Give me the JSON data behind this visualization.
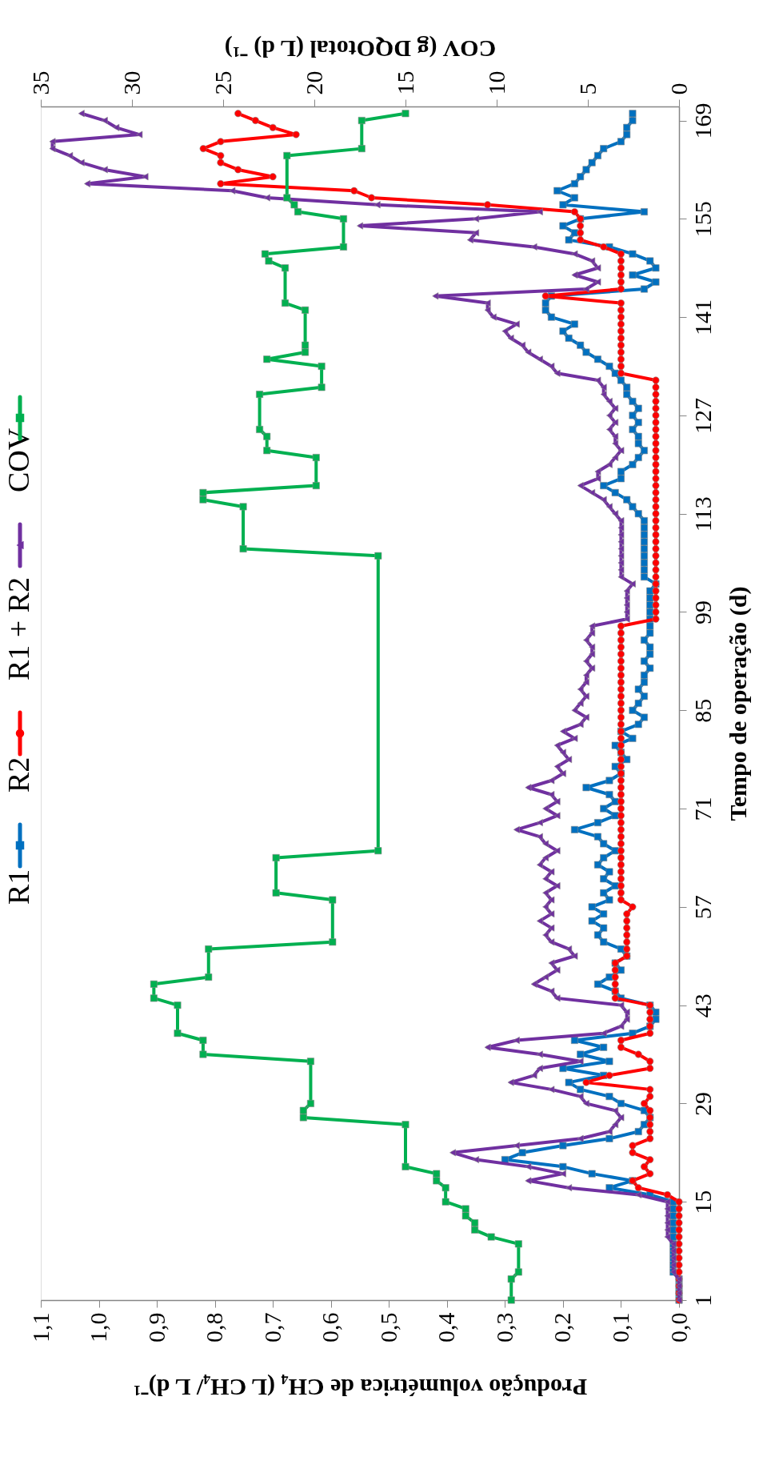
{
  "chart_data": {
    "type": "line",
    "ylabel": "Tempo de operação (d)",
    "xlabel": "Produção volumétrica de CH₄ (L CH₄/ L d)⁻¹",
    "x2label": "COV (g DQOtotal (L d) ⁻¹)",
    "ylim": [
      1,
      171
    ],
    "yticks": [
      1,
      15,
      29,
      43,
      57,
      71,
      85,
      99,
      113,
      127,
      141,
      155,
      169
    ],
    "xlim": [
      1.1,
      0
    ],
    "xticks": [
      {
        "value": 0,
        "label": "0,0"
      },
      {
        "value": 0.1,
        "label": "0,1"
      },
      {
        "value": 0.2,
        "label": "0,2"
      },
      {
        "value": 0.3,
        "label": "0,3"
      },
      {
        "value": 0.4,
        "label": "0,4"
      },
      {
        "value": 0.5,
        "label": "0,5"
      },
      {
        "value": 0.6,
        "label": "0,6"
      },
      {
        "value": 0.7,
        "label": "0,7"
      },
      {
        "value": 0.8,
        "label": "0,8"
      },
      {
        "value": 0.9,
        "label": "0,9"
      },
      {
        "value": 1.0,
        "label": "1,0"
      },
      {
        "value": 1.1,
        "label": "1,1"
      }
    ],
    "x2lim": [
      35,
      0
    ],
    "x2ticks": [
      0,
      5,
      10,
      15,
      20,
      25,
      30,
      35
    ],
    "legend": "left",
    "grid": false,
    "line_style": "solid",
    "series": [
      {
        "name": "R1",
        "color": "#0070c0",
        "marker": "square",
        "x": [
          0,
          0,
          0,
          0,
          0.01,
          0.01,
          0.01,
          0.01,
          0.01,
          0.01,
          0.01,
          0.01,
          0.01,
          0.01,
          0.01,
          0.05,
          0.12,
          0.08,
          0.15,
          0.2,
          0.3,
          0.27,
          0.2,
          0.12,
          0.07,
          0.06,
          0.05,
          0.06,
          0.1,
          0.12,
          0.17,
          0.19,
          0.13,
          0.2,
          0.12,
          0.17,
          0.13,
          0.18,
          0.08,
          0.05,
          0.04,
          0.04,
          0.05,
          0.1,
          0.11,
          0.14,
          0.12,
          0.1,
          0.11,
          0.09,
          0.1,
          0.13,
          0.14,
          0.13,
          0.15,
          0.13,
          0.15,
          0.12,
          0.13,
          0.11,
          0.13,
          0.12,
          0.14,
          0.13,
          0.11,
          0.13,
          0.14,
          0.18,
          0.14,
          0.11,
          0.13,
          0.11,
          0.12,
          0.16,
          0.12,
          0.1,
          0.11,
          0.09,
          0.1,
          0.11,
          0.08,
          0.1,
          0.07,
          0.06,
          0.08,
          0.07,
          0.06,
          0.07,
          0.06,
          0.06,
          0.05,
          0.06,
          0.05,
          0.05,
          0.06,
          0.05,
          0.05,
          0.05,
          0.05,
          0.05,
          0.05,
          0.05,
          0.04,
          0.06,
          0.06,
          0.06,
          0.06,
          0.06,
          0.06,
          0.06,
          0.06,
          0.06,
          0.07,
          0.08,
          0.09,
          0.11,
          0.13,
          0.1,
          0.1,
          0.08,
          0.07,
          0.06,
          0.07,
          0.07,
          0.08,
          0.07,
          0.08,
          0.07,
          0.08,
          0.09,
          0.09,
          0.1,
          0.11,
          0.12,
          0.14,
          0.16,
          0.17,
          0.19,
          0.2,
          0.18,
          0.22,
          0.23,
          0.23,
          0.22,
          0.06,
          0.04,
          0.08,
          0.04,
          0.05,
          0.08,
          0.12,
          0.19,
          0.18,
          0.2,
          0.17,
          0.06,
          0.2,
          0.18,
          0.21,
          0.18,
          0.17,
          0.16,
          0.15,
          0.14,
          0.13,
          0.1,
          0.09,
          0.09,
          0.08,
          0.08
        ],
        "values": [
          1,
          2,
          3,
          4,
          5,
          6,
          7,
          8,
          9,
          10,
          11,
          12,
          13,
          14,
          15,
          16,
          17,
          18,
          19,
          20,
          21,
          22,
          23,
          24,
          25,
          26,
          27,
          28,
          29,
          30,
          31,
          32,
          33,
          34,
          35,
          36,
          37,
          38,
          39,
          40,
          41,
          42,
          43,
          44,
          45,
          46,
          47,
          48,
          49,
          50,
          51,
          52,
          53,
          54,
          55,
          56,
          57,
          58,
          59,
          60,
          61,
          62,
          63,
          64,
          65,
          66,
          67,
          68,
          69,
          70,
          71,
          72,
          73,
          74,
          75,
          76,
          77,
          78,
          79,
          80,
          81,
          82,
          83,
          84,
          85,
          86,
          87,
          88,
          89,
          90,
          91,
          92,
          93,
          94,
          95,
          96,
          97,
          98,
          99,
          100,
          101,
          102,
          103,
          104,
          105,
          106,
          107,
          108,
          109,
          110,
          111,
          112,
          113,
          114,
          115,
          116,
          117,
          118,
          119,
          120,
          121,
          122,
          123,
          124,
          125,
          126,
          127,
          128,
          129,
          130,
          131,
          132,
          133,
          134,
          135,
          136,
          137,
          138,
          139,
          140,
          141,
          142,
          143,
          144,
          145,
          146,
          147,
          148,
          149,
          150,
          151,
          152,
          153,
          154,
          155,
          156,
          157,
          158,
          159,
          160,
          161,
          162,
          163,
          164,
          165,
          166,
          167,
          168,
          169,
          170
        ]
      },
      {
        "name": "R2",
        "color": "#ff0000",
        "marker": "circle",
        "x": [
          0,
          0,
          0,
          0,
          0,
          0,
          0,
          0,
          0,
          0,
          0,
          0,
          0,
          0,
          0,
          0.02,
          0.07,
          0.08,
          0.05,
          0.06,
          0.05,
          0.08,
          0.08,
          0.05,
          0.05,
          0.05,
          0.05,
          0.05,
          0.06,
          0.05,
          0.05,
          0.16,
          0.12,
          0.05,
          0.05,
          0.07,
          0.1,
          0.1,
          0.05,
          0.05,
          0.05,
          0.05,
          0.05,
          0.11,
          0.11,
          0.11,
          0.11,
          0.11,
          0.11,
          0.09,
          0.09,
          0.09,
          0.09,
          0.09,
          0.09,
          0.09,
          0.08,
          0.1,
          0.1,
          0.1,
          0.1,
          0.1,
          0.1,
          0.1,
          0.1,
          0.1,
          0.1,
          0.1,
          0.1,
          0.1,
          0.1,
          0.1,
          0.1,
          0.1,
          0.1,
          0.1,
          0.1,
          0.1,
          0.1,
          0.1,
          0.1,
          0.1,
          0.1,
          0.1,
          0.1,
          0.1,
          0.1,
          0.1,
          0.1,
          0.1,
          0.1,
          0.1,
          0.1,
          0.1,
          0.1,
          0.1,
          0.1,
          0.04,
          0.04,
          0.04,
          0.04,
          0.04,
          0.04,
          0.04,
          0.04,
          0.04,
          0.04,
          0.04,
          0.04,
          0.04,
          0.04,
          0.04,
          0.04,
          0.04,
          0.04,
          0.04,
          0.04,
          0.04,
          0.04,
          0.04,
          0.04,
          0.04,
          0.04,
          0.04,
          0.04,
          0.04,
          0.04,
          0.04,
          0.04,
          0.04,
          0.04,
          0.04,
          0.1,
          0.1,
          0.1,
          0.1,
          0.1,
          0.1,
          0.1,
          0.1,
          0.1,
          0.1,
          0.1,
          0.23,
          0.1,
          0.1,
          0.1,
          0.1,
          0.1,
          0.1,
          0.13,
          0.17,
          0.17,
          0.17,
          0.17,
          0.18,
          0.33,
          0.53,
          0.56,
          0.79,
          0.7,
          0.76,
          0.79,
          0.79,
          0.82,
          0.79,
          0.66,
          0.7,
          0.73,
          0.76
        ],
        "values": [
          1,
          2,
          3,
          4,
          5,
          6,
          7,
          8,
          9,
          10,
          11,
          12,
          13,
          14,
          15,
          16,
          17,
          18,
          19,
          20,
          21,
          22,
          23,
          24,
          25,
          26,
          27,
          28,
          29,
          30,
          31,
          32,
          33,
          34,
          35,
          36,
          37,
          38,
          39,
          40,
          41,
          42,
          43,
          44,
          45,
          46,
          47,
          48,
          49,
          50,
          51,
          52,
          53,
          54,
          55,
          56,
          57,
          58,
          59,
          60,
          61,
          62,
          63,
          64,
          65,
          66,
          67,
          68,
          69,
          70,
          71,
          72,
          73,
          74,
          75,
          76,
          77,
          78,
          79,
          80,
          81,
          82,
          83,
          84,
          85,
          86,
          87,
          88,
          89,
          90,
          91,
          92,
          93,
          94,
          95,
          96,
          97,
          98,
          99,
          100,
          101,
          102,
          103,
          104,
          105,
          106,
          107,
          108,
          109,
          110,
          111,
          112,
          113,
          114,
          115,
          116,
          117,
          118,
          119,
          120,
          121,
          122,
          123,
          124,
          125,
          126,
          127,
          128,
          129,
          130,
          131,
          132,
          133,
          134,
          135,
          136,
          137,
          138,
          139,
          140,
          141,
          142,
          143,
          144,
          145,
          146,
          147,
          148,
          149,
          150,
          151,
          152,
          153,
          154,
          155,
          156,
          157,
          158,
          159,
          160,
          161,
          162,
          163,
          164,
          165,
          166,
          167,
          168,
          169,
          170
        ]
      },
      {
        "name": "R1 + R2",
        "color": "#7030a0",
        "marker": "triangle",
        "x": [
          0,
          0,
          0,
          0,
          0.01,
          0.01,
          0.01,
          0.01,
          0.01,
          0.02,
          0.02,
          0.02,
          0.02,
          0.02,
          0.02,
          0.07,
          0.19,
          0.26,
          0.2,
          0.26,
          0.35,
          0.39,
          0.28,
          0.17,
          0.12,
          0.11,
          0.1,
          0.11,
          0.16,
          0.17,
          0.22,
          0.29,
          0.25,
          0.24,
          0.17,
          0.24,
          0.33,
          0.28,
          0.13,
          0.1,
          0.09,
          0.09,
          0.1,
          0.21,
          0.22,
          0.25,
          0.23,
          0.21,
          0.22,
          0.18,
          0.19,
          0.22,
          0.23,
          0.22,
          0.24,
          0.22,
          0.23,
          0.22,
          0.23,
          0.21,
          0.23,
          0.22,
          0.24,
          0.23,
          0.21,
          0.23,
          0.24,
          0.28,
          0.24,
          0.21,
          0.23,
          0.21,
          0.22,
          0.26,
          0.22,
          0.2,
          0.21,
          0.19,
          0.2,
          0.21,
          0.18,
          0.2,
          0.17,
          0.16,
          0.18,
          0.17,
          0.16,
          0.17,
          0.16,
          0.16,
          0.15,
          0.16,
          0.15,
          0.15,
          0.16,
          0.15,
          0.15,
          0.09,
          0.09,
          0.09,
          0.09,
          0.09,
          0.08,
          0.1,
          0.1,
          0.1,
          0.1,
          0.1,
          0.1,
          0.1,
          0.1,
          0.1,
          0.11,
          0.12,
          0.13,
          0.15,
          0.17,
          0.14,
          0.14,
          0.12,
          0.11,
          0.1,
          0.11,
          0.11,
          0.12,
          0.11,
          0.12,
          0.11,
          0.12,
          0.13,
          0.13,
          0.14,
          0.21,
          0.22,
          0.24,
          0.26,
          0.27,
          0.29,
          0.3,
          0.28,
          0.32,
          0.33,
          0.33,
          0.42,
          0.16,
          0.14,
          0.18,
          0.14,
          0.15,
          0.18,
          0.25,
          0.36,
          0.35,
          0.55,
          0.35,
          0.24,
          0.52,
          0.71,
          0.77,
          1.02,
          0.92,
          0.99,
          1.03,
          1.05,
          1.08,
          1.08,
          0.93,
          0.97,
          0.99,
          1.03
        ],
        "values": [
          1,
          2,
          3,
          4,
          5,
          6,
          7,
          8,
          9,
          10,
          11,
          12,
          13,
          14,
          15,
          16,
          17,
          18,
          19,
          20,
          21,
          22,
          23,
          24,
          25,
          26,
          27,
          28,
          29,
          30,
          31,
          32,
          33,
          34,
          35,
          36,
          37,
          38,
          39,
          40,
          41,
          42,
          43,
          44,
          45,
          46,
          47,
          48,
          49,
          50,
          51,
          52,
          53,
          54,
          55,
          56,
          57,
          58,
          59,
          60,
          61,
          62,
          63,
          64,
          65,
          66,
          67,
          68,
          69,
          70,
          71,
          72,
          73,
          74,
          75,
          76,
          77,
          78,
          79,
          80,
          81,
          82,
          83,
          84,
          85,
          86,
          87,
          88,
          89,
          90,
          91,
          92,
          93,
          94,
          95,
          96,
          97,
          98,
          99,
          100,
          101,
          102,
          103,
          104,
          105,
          106,
          107,
          108,
          109,
          110,
          111,
          112,
          113,
          114,
          115,
          116,
          117,
          118,
          119,
          120,
          121,
          122,
          123,
          124,
          125,
          126,
          127,
          128,
          129,
          130,
          131,
          132,
          133,
          134,
          135,
          136,
          137,
          138,
          139,
          140,
          141,
          142,
          143,
          144,
          145,
          146,
          147,
          148,
          149,
          150,
          151,
          152,
          153,
          154,
          155,
          156,
          157,
          158,
          159,
          160,
          161,
          162,
          163,
          164,
          165,
          166,
          167,
          168,
          169,
          170
        ]
      },
      {
        "name": "COV",
        "color": "#00b050",
        "marker": "square",
        "axis": "x2",
        "x": [
          9.2,
          9.2,
          8.8,
          8.8,
          10.3,
          11.2,
          11.2,
          11.7,
          11.7,
          12.8,
          12.8,
          13.3,
          13.3,
          15.0,
          15.0,
          20.6,
          20.6,
          20.2,
          20.2,
          26.1,
          26.1,
          27.5,
          27.5,
          28.8,
          28.8,
          25.8,
          25.8,
          19.0,
          19.0,
          22.1,
          22.1,
          16.5,
          16.5,
          23.9,
          23.9,
          26.1,
          26.1,
          19.9,
          19.9,
          22.6,
          22.6,
          23.0,
          23.0,
          19.6,
          19.6,
          22.6,
          20.5,
          20.5,
          20.5,
          21.6,
          21.6,
          22.5,
          22.7,
          18.4,
          18.4,
          20.9,
          21.1,
          21.5,
          21.5,
          17.4,
          17.4,
          15.0
        ],
        "values": [
          1,
          4,
          5,
          9,
          10,
          11,
          12,
          13,
          14,
          15,
          17,
          18,
          19,
          20,
          26,
          27,
          28,
          29,
          35,
          36,
          38,
          39,
          43,
          44,
          46,
          47,
          51,
          52,
          58,
          59,
          64,
          65,
          107,
          108,
          114,
          115,
          116,
          117,
          121,
          122,
          124,
          125,
          130,
          131,
          134,
          135,
          136,
          137,
          142,
          143,
          148,
          149,
          150,
          151,
          155,
          156,
          157,
          158,
          164,
          165,
          169,
          170
        ]
      }
    ]
  }
}
